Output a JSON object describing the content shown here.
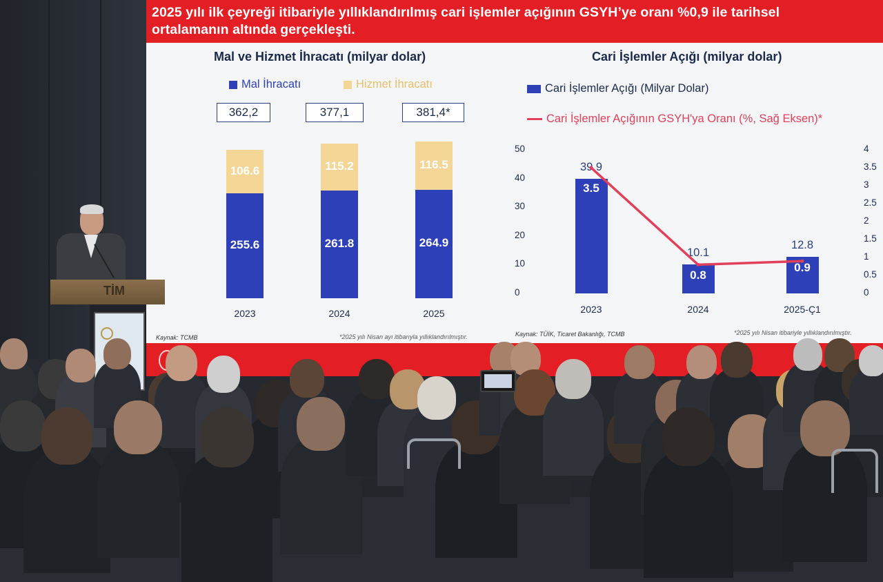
{
  "slide": {
    "banner_line1": "2025 yılı ilk çeyreği itibariyle yıllıklandırılmış cari işlemler açığının GSYH’ye oranı %0,9 ile tarihsel",
    "banner_line2": "ortalamanın altında gerçekleşti.",
    "left_chart": {
      "title": "Mal ve Hizmet İhracatı (milyar dolar)",
      "legend": [
        "Mal İhracatı",
        "Hizmet İhracatı"
      ],
      "totals": [
        "362,2",
        "377,1",
        "381,4*"
      ],
      "source": "Kaynak: TCMB",
      "note": "*2025 yılı Nisan ayı itibarıyla yıllıklandırılmıştır."
    },
    "right_chart": {
      "title": "Cari İşlemler Açığı (milyar dolar)",
      "legend": [
        "Cari İşlemler Açığı (Milyar Dolar)",
        "Cari İşlemler Açığının GSYH'ya Oranı (%, Sağ Eksen)*"
      ],
      "source": "Kaynak: TÜİK, Ticaret Bakanlığı, TCMB",
      "note": "*2025 yılı Nisan itibariyle yıllıklandırılmıştır."
    },
    "podium_logo": "TİM",
    "colors": {
      "banner": "#e31e24",
      "mal": "#2e40b8",
      "hizmet": "#f3d596",
      "line": "#e0405a",
      "ink": "#1b2a4a"
    }
  },
  "chart_data": [
    {
      "type": "bar",
      "title": "Mal ve Hizmet İhracatı (milyar dolar)",
      "categories": [
        "2023",
        "2024",
        "2025"
      ],
      "series": [
        {
          "name": "Mal İhracatı",
          "values": [
            255.6,
            261.8,
            264.9
          ],
          "labels": [
            "255.6",
            "261.8",
            "264.9"
          ]
        },
        {
          "name": "Hizmet İhracatı",
          "values": [
            106.6,
            115.2,
            116.5
          ],
          "labels": [
            "106.6",
            "115.2",
            "116.5"
          ]
        }
      ],
      "stacked": true,
      "ylim": [
        0,
        400
      ]
    },
    {
      "type": "bar",
      "title": "Cari İşlemler Açığı (milyar dolar)",
      "categories": [
        "2023",
        "2024",
        "2025-Ç1"
      ],
      "series": [
        {
          "name": "Cari İşlemler Açığı (Milyar Dolar)",
          "values": [
            39.9,
            10.1,
            12.8
          ],
          "labels": [
            "39.9",
            "10.1",
            "12.8"
          ]
        },
        {
          "name": "Cari İşlemler Açığının GSYH'ya Oranı (%, Sağ Eksen)*",
          "type": "line",
          "values": [
            3.5,
            0.8,
            0.9
          ],
          "labels": [
            "3.5",
            "0.8",
            "0.9"
          ]
        }
      ],
      "ylim": [
        0,
        50
      ],
      "yticks": [
        "50",
        "40",
        "30",
        "20",
        "10",
        "0"
      ],
      "y2lim": [
        0,
        4
      ],
      "y2ticks": [
        "4",
        "3.5",
        "3",
        "2.5",
        "2",
        "1.5",
        "1",
        "0.5",
        "0"
      ]
    }
  ]
}
